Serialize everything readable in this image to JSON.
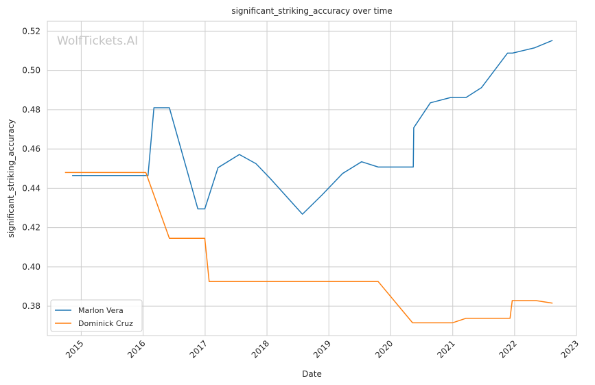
{
  "chart_data": {
    "type": "line",
    "title": "significant_striking_accuracy over time",
    "xlabel": "Date",
    "ylabel": "significant_striking_accuracy",
    "watermark": "WolfTickets.AI",
    "xlim": [
      "2014-06-15",
      "2023-01-01"
    ],
    "ylim": [
      0.365,
      0.525
    ],
    "x_ticks": [
      "2015-01-01",
      "2016-01-01",
      "2017-01-01",
      "2018-01-01",
      "2019-01-01",
      "2020-01-01",
      "2021-01-01",
      "2022-01-01",
      "2023-01-01"
    ],
    "x_tick_labels": [
      "2015",
      "2016",
      "2017",
      "2018",
      "2019",
      "2020",
      "2021",
      "2022",
      "2023"
    ],
    "y_ticks": [
      0.38,
      0.4,
      0.42,
      0.44,
      0.46,
      0.48,
      0.5,
      0.52
    ],
    "y_tick_labels": [
      "0.38",
      "0.40",
      "0.42",
      "0.44",
      "0.46",
      "0.48",
      "0.50",
      "0.52"
    ],
    "grid": true,
    "legend_position": "lower-left",
    "series": [
      {
        "name": "Marlon Vera",
        "color": "#1f77b4",
        "points": [
          [
            "2014-11-08",
            0.4465
          ],
          [
            "2016-01-30",
            0.4465
          ],
          [
            "2016-03-05",
            0.481
          ],
          [
            "2016-06-04",
            0.481
          ],
          [
            "2016-11-19",
            0.4295
          ],
          [
            "2016-12-30",
            0.4295
          ],
          [
            "2017-03-18",
            0.4505
          ],
          [
            "2017-07-22",
            0.4572
          ],
          [
            "2017-10-28",
            0.4525
          ],
          [
            "2018-01-20",
            0.445
          ],
          [
            "2018-07-29",
            0.4268
          ],
          [
            "2018-11-24",
            0.4368
          ],
          [
            "2019-03-23",
            0.4475
          ],
          [
            "2019-07-13",
            0.4535
          ],
          [
            "2019-10-19",
            0.4508
          ],
          [
            "2020-05-13",
            0.4508
          ],
          [
            "2020-05-16",
            0.4708
          ],
          [
            "2020-08-22",
            0.4835
          ],
          [
            "2020-12-19",
            0.4862
          ],
          [
            "2021-03-20",
            0.4862
          ],
          [
            "2021-06-19",
            0.4912
          ],
          [
            "2021-11-20",
            0.5088
          ],
          [
            "2021-12-20",
            0.5088
          ],
          [
            "2022-04-30",
            0.5115
          ],
          [
            "2022-08-13",
            0.5153
          ]
        ]
      },
      {
        "name": "Dominick Cruz",
        "color": "#ff7f0e",
        "points": [
          [
            "2014-09-27",
            0.448
          ],
          [
            "2016-01-17",
            0.448
          ],
          [
            "2016-06-04",
            0.4145
          ],
          [
            "2016-12-30",
            0.4145
          ],
          [
            "2017-01-25",
            0.3925
          ],
          [
            "2019-10-19",
            0.3925
          ],
          [
            "2020-05-09",
            0.3715
          ],
          [
            "2020-12-30",
            0.3715
          ],
          [
            "2021-03-20",
            0.3738
          ],
          [
            "2021-12-05",
            0.3738
          ],
          [
            "2021-12-18",
            0.3828
          ],
          [
            "2022-05-07",
            0.3828
          ],
          [
            "2022-08-13",
            0.3815
          ]
        ]
      }
    ]
  }
}
